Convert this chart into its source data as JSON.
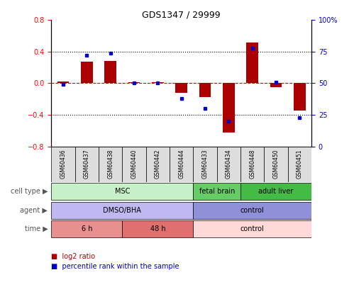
{
  "title": "GDS1347 / 29999",
  "samples": [
    "GSM60436",
    "GSM60437",
    "GSM60438",
    "GSM60440",
    "GSM60442",
    "GSM60444",
    "GSM60433",
    "GSM60434",
    "GSM60448",
    "GSM60450",
    "GSM60451"
  ],
  "log2_ratio": [
    0.02,
    0.27,
    0.28,
    0.01,
    0.01,
    -0.12,
    -0.18,
    -0.62,
    0.52,
    -0.05,
    -0.35
  ],
  "percentile_rank": [
    49,
    72,
    74,
    50,
    50,
    38,
    30,
    20,
    78,
    51,
    23
  ],
  "ylim": [
    -0.8,
    0.8
  ],
  "yticks_left": [
    -0.8,
    -0.4,
    0.0,
    0.4,
    0.8
  ],
  "yticks_right": [
    0,
    25,
    50,
    75,
    100
  ],
  "cell_type_groups": [
    {
      "label": "MSC",
      "start": 0,
      "end": 5,
      "color": "#c8f0c8"
    },
    {
      "label": "fetal brain",
      "start": 6,
      "end": 7,
      "color": "#66cc66"
    },
    {
      "label": "adult liver",
      "start": 8,
      "end": 10,
      "color": "#44bb44"
    }
  ],
  "agent_groups": [
    {
      "label": "DMSO/BHA",
      "start": 0,
      "end": 5,
      "color": "#c0b8f0"
    },
    {
      "label": "control",
      "start": 6,
      "end": 10,
      "color": "#9090d8"
    }
  ],
  "time_groups": [
    {
      "label": "6 h",
      "start": 0,
      "end": 2,
      "color": "#e89090"
    },
    {
      "label": "48 h",
      "start": 3,
      "end": 5,
      "color": "#e07070"
    },
    {
      "label": "control",
      "start": 6,
      "end": 10,
      "color": "#ffd8d8"
    }
  ],
  "bar_color": "#aa0000",
  "dot_color": "#0000cc",
  "zero_line_color": "#cc0000",
  "bg_color": "#ffffff",
  "right_axis_color": "#0000cc",
  "sample_box_color": "#dddddd",
  "row_label_color": "#555555"
}
